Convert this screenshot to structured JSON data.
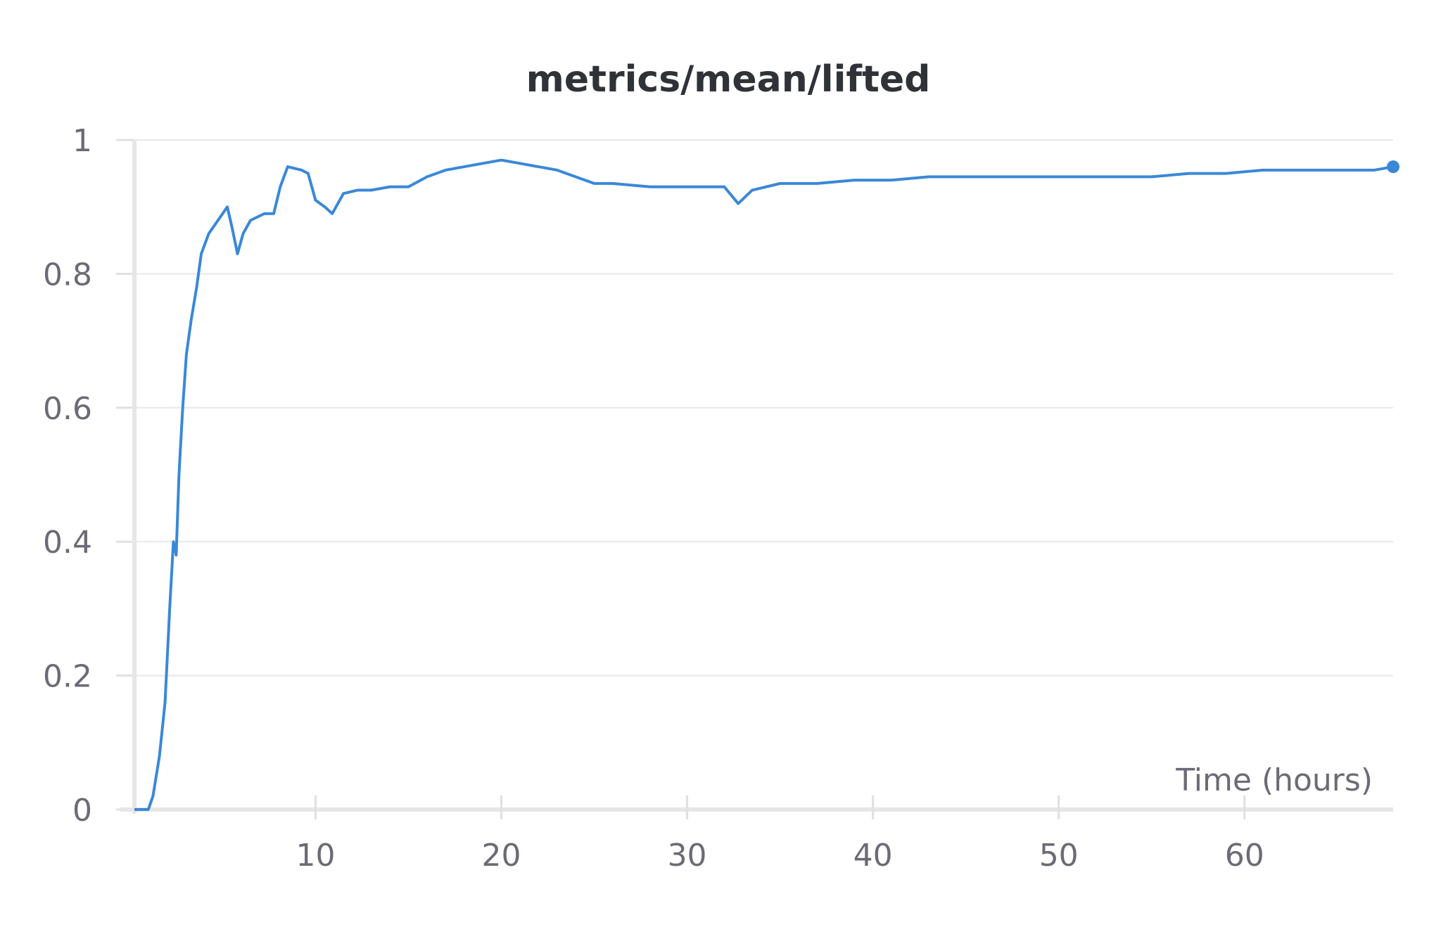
{
  "chart_data": {
    "type": "line",
    "title": "metrics/mean/lifted",
    "x_label": "Time (hours)",
    "x": [
      0.25,
      1,
      1.25,
      1.6,
      1.9,
      2.15,
      2.35,
      2.5,
      2.65,
      2.85,
      3.05,
      3.3,
      3.6,
      3.85,
      4.25,
      4.75,
      5.25,
      5.5,
      5.8,
      6.1,
      6.5,
      7.25,
      7.75,
      8.1,
      8.5,
      9.25,
      9.6,
      10,
      10.5,
      10.9,
      11.5,
      12.25,
      13,
      14,
      15,
      16,
      17,
      18,
      19,
      20,
      21,
      22,
      23,
      24,
      25,
      26,
      28,
      30,
      32,
      32.75,
      33.5,
      35,
      37,
      39,
      41,
      43,
      45,
      47,
      49,
      51,
      53,
      55,
      57,
      59,
      61,
      63,
      65,
      67,
      68
    ],
    "series": [
      {
        "name": "metrics/mean/lifted",
        "color": "#3a88d8",
        "values": [
          0,
          0,
          0.02,
          0.08,
          0.16,
          0.3,
          0.4,
          0.38,
          0.5,
          0.6,
          0.68,
          0.73,
          0.78,
          0.83,
          0.86,
          0.88,
          0.9,
          0.87,
          0.83,
          0.86,
          0.88,
          0.89,
          0.89,
          0.93,
          0.96,
          0.955,
          0.95,
          0.91,
          0.9,
          0.89,
          0.92,
          0.925,
          0.925,
          0.93,
          0.93,
          0.945,
          0.955,
          0.96,
          0.965,
          0.97,
          0.965,
          0.96,
          0.955,
          0.945,
          0.935,
          0.935,
          0.93,
          0.93,
          0.93,
          0.905,
          0.925,
          0.935,
          0.935,
          0.94,
          0.94,
          0.945,
          0.945,
          0.945,
          0.945,
          0.945,
          0.945,
          0.945,
          0.95,
          0.95,
          0.955,
          0.955,
          0.955,
          0.955,
          0.96
        ]
      }
    ],
    "xlim": [
      0.25,
      68
    ],
    "xticks": [
      10,
      20,
      30,
      40,
      50,
      60
    ],
    "ylim": [
      0,
      1
    ],
    "yticks": [
      0,
      0.2,
      0.4,
      0.6,
      0.8,
      1
    ],
    "grid": true
  }
}
